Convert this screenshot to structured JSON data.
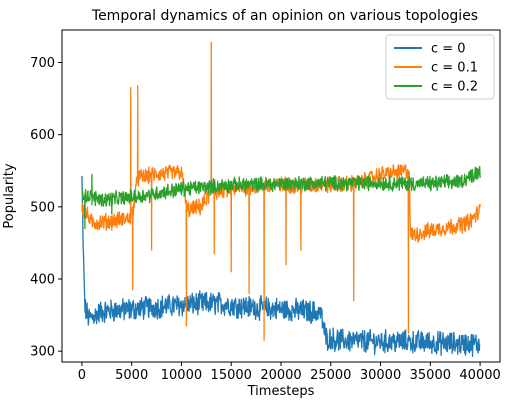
{
  "chart_data": {
    "type": "line",
    "title": "Temporal dynamics of an opinion on various topologies",
    "xlabel": "Timesteps",
    "ylabel": "Popularity",
    "xlim": [
      -2000,
      42000
    ],
    "ylim": [
      285,
      745
    ],
    "xticks": [
      0,
      5000,
      10000,
      15000,
      20000,
      25000,
      30000,
      35000,
      40000
    ],
    "yticks": [
      300,
      400,
      500,
      600,
      700
    ],
    "grid": false,
    "legend_position": "top-right",
    "series": [
      {
        "name": "c = 0",
        "color": "#1f77b4",
        "noise": 14,
        "x": [
          0,
          150,
          300,
          700,
          2000,
          5000,
          8000,
          10000,
          12000,
          14000,
          16000,
          18000,
          20000,
          22000,
          24000,
          24500,
          26000,
          30000,
          33000,
          35000,
          38000,
          40000
        ],
        "y": [
          540,
          430,
          360,
          345,
          355,
          358,
          362,
          364,
          366,
          366,
          362,
          360,
          358,
          356,
          353,
          318,
          315,
          313,
          313,
          312,
          310,
          310
        ]
      },
      {
        "name": "c = 0.1",
        "color": "#ff7f0e",
        "noise": 10,
        "x": [
          0,
          1000,
          3000,
          5000,
          5600,
          7500,
          10000,
          10600,
          12000,
          13000,
          15000,
          17000,
          20000,
          25000,
          28000,
          30000,
          32000,
          32900,
          33000,
          36000,
          38000,
          39000,
          40000
        ],
        "y": [
          500,
          478,
          480,
          485,
          540,
          545,
          548,
          495,
          500,
          520,
          525,
          528,
          530,
          530,
          533,
          545,
          548,
          550,
          460,
          470,
          475,
          480,
          495
        ],
        "spikes": [
          {
            "x": 4900,
            "y": 665
          },
          {
            "x": 5100,
            "y": 385
          },
          {
            "x": 5600,
            "y": 668
          },
          {
            "x": 10500,
            "y": 335
          },
          {
            "x": 11500,
            "y": 500
          },
          {
            "x": 13000,
            "y": 728
          },
          {
            "x": 13300,
            "y": 435
          },
          {
            "x": 7000,
            "y": 440
          },
          {
            "x": 15000,
            "y": 410
          },
          {
            "x": 16800,
            "y": 380
          },
          {
            "x": 18300,
            "y": 315
          },
          {
            "x": 20500,
            "y": 420
          },
          {
            "x": 22000,
            "y": 440
          },
          {
            "x": 27300,
            "y": 370
          },
          {
            "x": 32800,
            "y": 325
          }
        ]
      },
      {
        "name": "c = 0.2",
        "color": "#2ca02c",
        "noise": 9,
        "x": [
          0,
          500,
          2000,
          4000,
          6000,
          10000,
          15000,
          20000,
          25000,
          30000,
          35000,
          38000,
          40000
        ],
        "y": [
          520,
          515,
          510,
          512,
          515,
          525,
          530,
          532,
          533,
          533,
          532,
          535,
          550
        ],
        "spikes": [
          {
            "x": 300,
            "y": 470
          },
          {
            "x": 1000,
            "y": 545
          },
          {
            "x": 3000,
            "y": 490
          }
        ]
      }
    ]
  }
}
